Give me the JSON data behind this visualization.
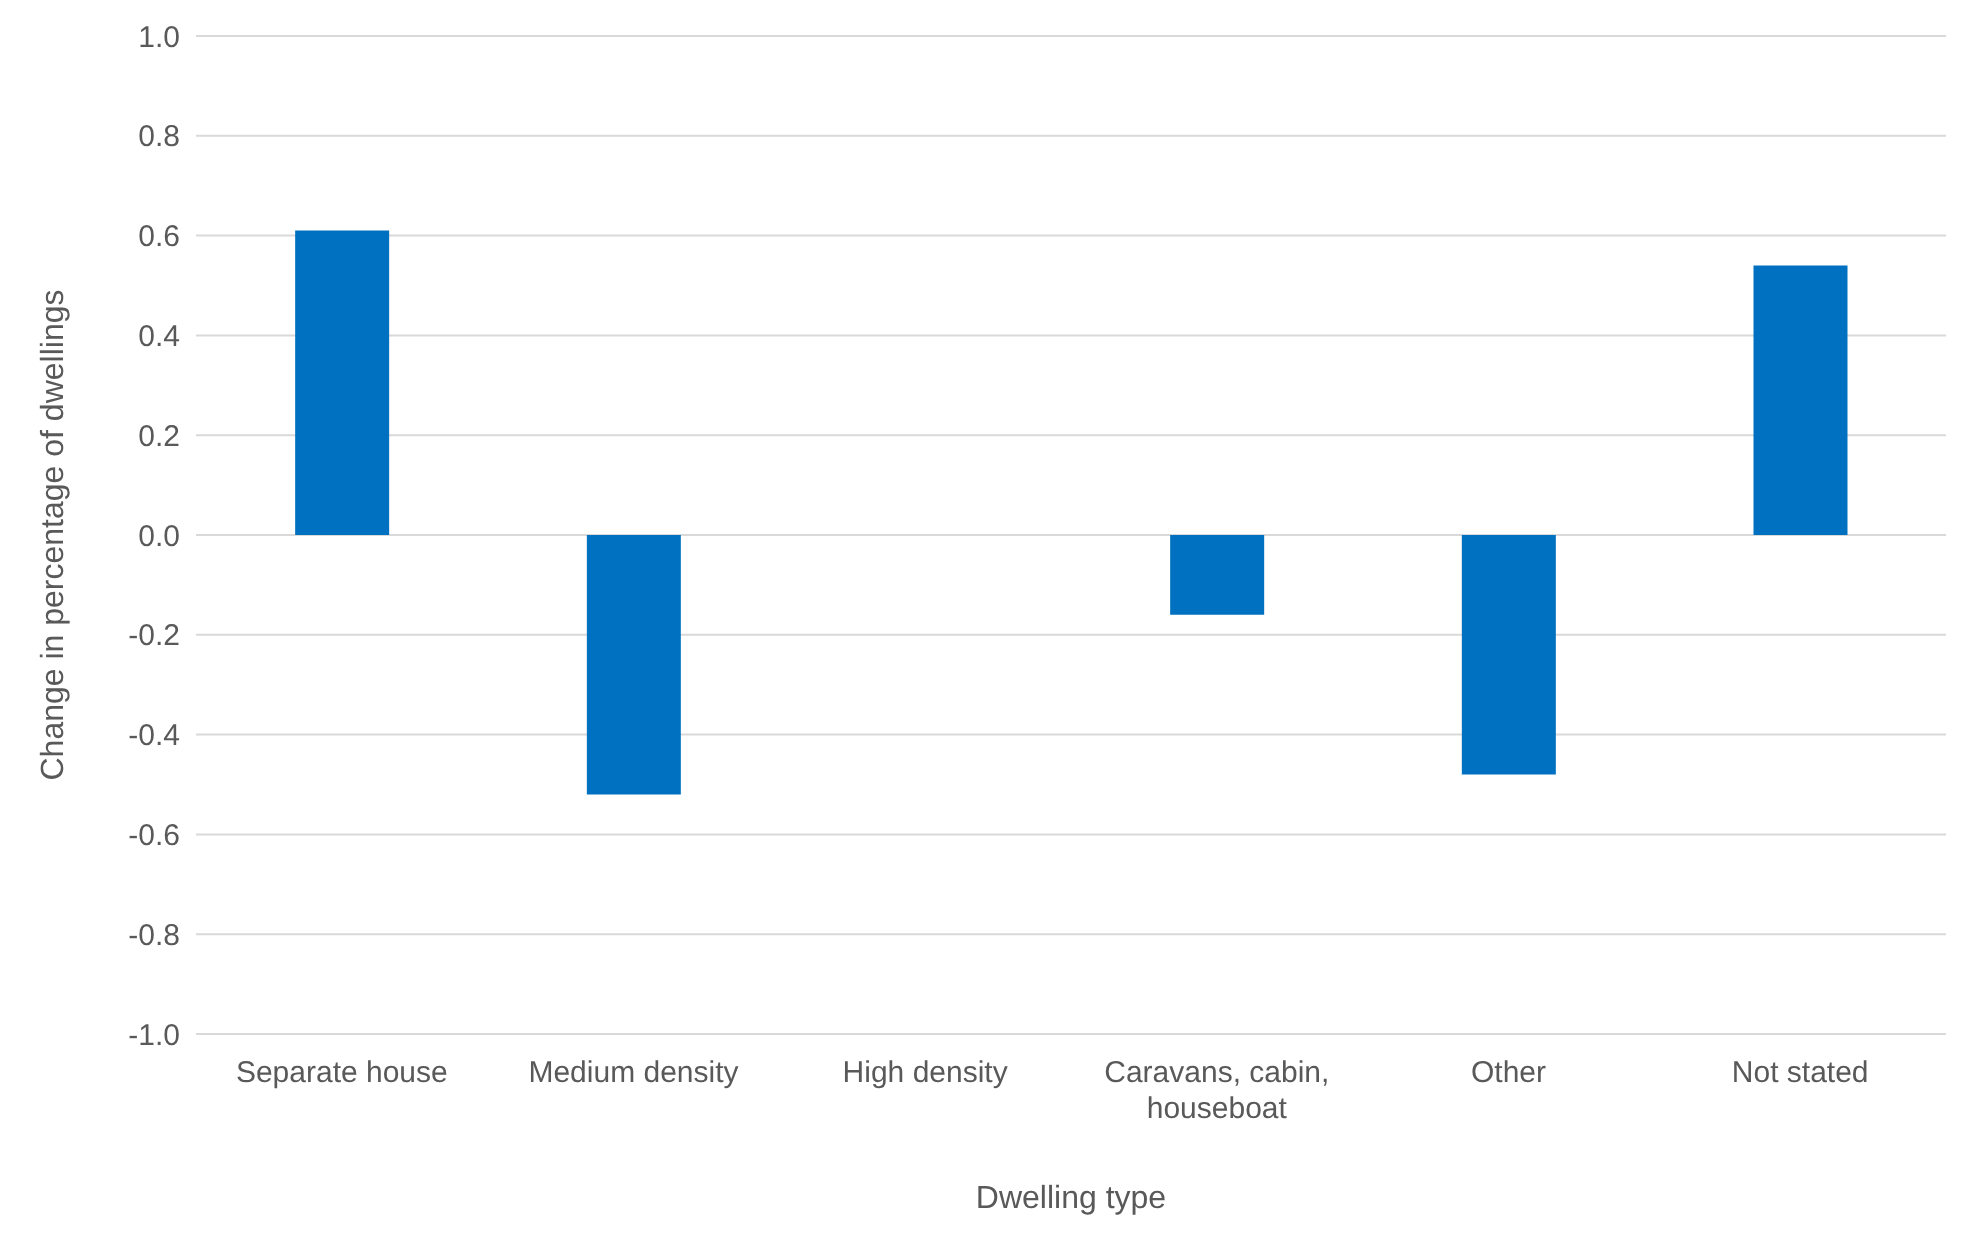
{
  "chart_data": {
    "type": "bar",
    "xlabel": "Dwelling type",
    "ylabel": "Change in percentage of dwellings",
    "categories": [
      "Separate house",
      "Medium density",
      "High density",
      "Caravans, cabin, houseboat",
      "Other",
      "Not stated"
    ],
    "values": [
      0.61,
      -0.52,
      0,
      -0.16,
      -0.48,
      0.54
    ],
    "color": "#0070c0",
    "ylim": [
      -1,
      1
    ],
    "yticks": [
      {
        "value": -1,
        "label": "-1.0"
      },
      {
        "value": -0.8,
        "label": "-0.8"
      },
      {
        "value": -0.6,
        "label": "-0.6"
      },
      {
        "value": -0.4,
        "label": "-0.4"
      },
      {
        "value": -0.2,
        "label": "-0.2"
      },
      {
        "value": 0,
        "label": "0.0"
      },
      {
        "value": 0.2,
        "label": "0.2"
      },
      {
        "value": 0.4,
        "label": "0.4"
      },
      {
        "value": 0.6,
        "label": "0.6"
      },
      {
        "value": 0.8,
        "label": "0.8"
      },
      {
        "value": 1,
        "label": "1.0"
      }
    ],
    "grid": "y"
  }
}
